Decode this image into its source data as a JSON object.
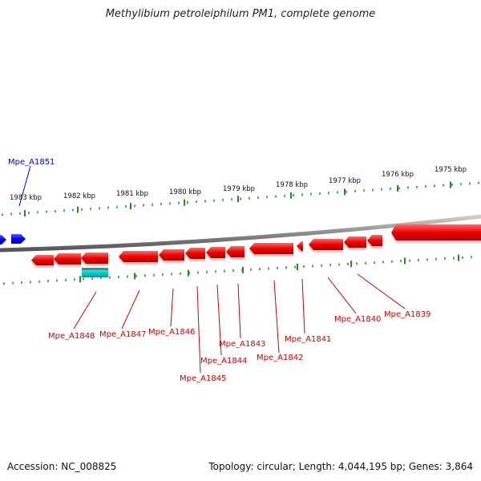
{
  "title": "Methylibium petroleiphilum PM1, complete genome",
  "footer": {
    "accession": "Accession: NC_008825",
    "summary": "Topology: circular; Length: 4,044,195 bp; Genes: 3,864"
  },
  "scale_labels": [
    "1983 kbp",
    "1982 kbp",
    "1981 kbp",
    "1980 kbp",
    "1979 kbp",
    "1978 kbp",
    "1977 kbp",
    "1976 kbp",
    "1975 kbp"
  ],
  "genes_top": [
    {
      "label": "Mpe_A1851",
      "color": "#0000cc"
    }
  ],
  "genes_bottom": [
    {
      "label": "Mpe_A1848"
    },
    {
      "label": "Mpe_A1847"
    },
    {
      "label": "Mpe_A1846"
    },
    {
      "label": "Mpe_A1845"
    },
    {
      "label": "Mpe_A1844"
    },
    {
      "label": "Mpe_A1843"
    },
    {
      "label": "Mpe_A1842"
    },
    {
      "label": "Mpe_A1841"
    },
    {
      "label": "Mpe_A1840"
    },
    {
      "label": "Mpe_A1839"
    }
  ],
  "colors": {
    "forward_gene": "#0000ee",
    "reverse_gene": "#ee0000",
    "rna_gene": "#00cccc",
    "ticks": "#228b22",
    "backbone": "#888888",
    "reverse_label": "#cc0000",
    "forward_label": "#000099"
  }
}
